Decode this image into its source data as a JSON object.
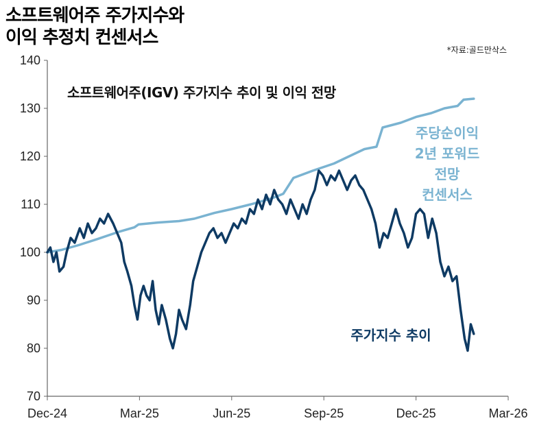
{
  "header": {
    "line1": "소프트웨어주 주가지수와",
    "line2": "이익 추정치 컨센서스",
    "source": "*자료:골드만삭스"
  },
  "colors": {
    "price": "#0e3a63",
    "eps": "#7ab3d1",
    "axis": "#666666"
  },
  "chart_data": {
    "type": "line",
    "title": "소프트웨어주(IGV) 주가지수 추이 및 이익 전망",
    "x_ticks": [
      "Dec-24",
      "Mar-25",
      "Jun-25",
      "Sep-25",
      "Dec-25",
      "Mar-26"
    ],
    "ylim": [
      70,
      140
    ],
    "y_ticks": [
      70,
      80,
      90,
      100,
      110,
      120,
      130,
      140
    ],
    "grid": false,
    "series": [
      {
        "name": "주가지수 추이",
        "labels": [
          "주가지수 추이"
        ],
        "color": "#0e3a63",
        "points": [
          [
            "2024-12-01",
            100
          ],
          [
            "2024-12-04",
            101
          ],
          [
            "2024-12-07",
            98
          ],
          [
            "2024-12-10",
            100
          ],
          [
            "2024-12-13",
            96
          ],
          [
            "2024-12-17",
            97
          ],
          [
            "2024-12-20",
            100
          ],
          [
            "2024-12-24",
            103
          ],
          [
            "2024-12-28",
            102
          ],
          [
            "2025-01-02",
            105
          ],
          [
            "2025-01-06",
            103
          ],
          [
            "2025-01-10",
            106
          ],
          [
            "2025-01-14",
            104
          ],
          [
            "2025-01-18",
            105
          ],
          [
            "2025-01-22",
            107
          ],
          [
            "2025-01-26",
            106
          ],
          [
            "2025-01-30",
            108
          ],
          [
            "2025-02-04",
            106
          ],
          [
            "2025-02-08",
            104
          ],
          [
            "2025-02-12",
            102
          ],
          [
            "2025-02-15",
            98
          ],
          [
            "2025-02-18",
            96
          ],
          [
            "2025-02-22",
            93
          ],
          [
            "2025-02-25",
            89
          ],
          [
            "2025-02-28",
            86
          ],
          [
            "2025-03-03",
            91
          ],
          [
            "2025-03-06",
            93
          ],
          [
            "2025-03-09",
            91
          ],
          [
            "2025-03-12",
            90
          ],
          [
            "2025-03-15",
            94
          ],
          [
            "2025-03-18",
            88
          ],
          [
            "2025-03-21",
            85
          ],
          [
            "2025-03-24",
            89
          ],
          [
            "2025-03-28",
            86
          ],
          [
            "2025-04-01",
            82
          ],
          [
            "2025-04-04",
            80
          ],
          [
            "2025-04-07",
            83
          ],
          [
            "2025-04-10",
            88
          ],
          [
            "2025-04-13",
            86
          ],
          [
            "2025-04-17",
            84
          ],
          [
            "2025-04-21",
            89
          ],
          [
            "2025-04-24",
            94
          ],
          [
            "2025-04-28",
            97
          ],
          [
            "2025-05-02",
            100
          ],
          [
            "2025-05-06",
            102
          ],
          [
            "2025-05-10",
            104
          ],
          [
            "2025-05-14",
            105
          ],
          [
            "2025-05-18",
            103
          ],
          [
            "2025-05-22",
            104
          ],
          [
            "2025-05-26",
            102
          ],
          [
            "2025-05-30",
            104
          ],
          [
            "2025-06-03",
            106
          ],
          [
            "2025-06-07",
            105
          ],
          [
            "2025-06-11",
            107
          ],
          [
            "2025-06-15",
            106
          ],
          [
            "2025-06-19",
            109
          ],
          [
            "2025-06-23",
            108
          ],
          [
            "2025-06-27",
            111
          ],
          [
            "2025-07-01",
            109
          ],
          [
            "2025-07-05",
            112
          ],
          [
            "2025-07-09",
            110
          ],
          [
            "2025-07-13",
            113
          ],
          [
            "2025-07-17",
            111
          ],
          [
            "2025-07-21",
            110
          ],
          [
            "2025-07-25",
            108
          ],
          [
            "2025-07-29",
            111
          ],
          [
            "2025-08-02",
            109
          ],
          [
            "2025-08-06",
            107
          ],
          [
            "2025-08-10",
            110
          ],
          [
            "2025-08-14",
            108
          ],
          [
            "2025-08-18",
            111
          ],
          [
            "2025-08-22",
            113
          ],
          [
            "2025-08-26",
            117
          ],
          [
            "2025-08-30",
            116
          ],
          [
            "2025-09-03",
            114
          ],
          [
            "2025-09-07",
            116
          ],
          [
            "2025-09-11",
            115
          ],
          [
            "2025-09-15",
            117
          ],
          [
            "2025-09-19",
            115
          ],
          [
            "2025-09-23",
            113
          ],
          [
            "2025-09-27",
            115
          ],
          [
            "2025-10-01",
            116
          ],
          [
            "2025-10-05",
            114
          ],
          [
            "2025-10-09",
            113
          ],
          [
            "2025-10-13",
            111
          ],
          [
            "2025-10-17",
            109
          ],
          [
            "2025-10-21",
            106
          ],
          [
            "2025-10-25",
            101
          ],
          [
            "2025-10-29",
            104
          ],
          [
            "2025-11-02",
            103
          ],
          [
            "2025-11-06",
            106
          ],
          [
            "2025-11-10",
            109
          ],
          [
            "2025-11-14",
            106
          ],
          [
            "2025-11-18",
            104
          ],
          [
            "2025-11-22",
            101
          ],
          [
            "2025-11-26",
            103
          ],
          [
            "2025-11-30",
            108
          ],
          [
            "2025-12-04",
            109
          ],
          [
            "2025-12-08",
            108
          ],
          [
            "2025-12-12",
            103
          ],
          [
            "2025-12-16",
            107
          ],
          [
            "2025-12-20",
            104
          ],
          [
            "2025-12-24",
            98
          ],
          [
            "2025-12-28",
            95
          ],
          [
            "2026-01-01",
            97
          ],
          [
            "2026-01-05",
            94
          ],
          [
            "2026-01-09",
            95
          ],
          [
            "2026-01-13",
            88
          ],
          [
            "2026-01-17",
            82
          ],
          [
            "2026-01-20",
            79.5
          ],
          [
            "2026-01-23",
            85
          ],
          [
            "2026-01-26",
            83
          ]
        ]
      },
      {
        "name": "주당순이익 2년 포워드 전망 컨센서스",
        "labels": [
          "주당순이익",
          "2년 포워드",
          "전망",
          "컨센서스"
        ],
        "color": "#7ab3d1",
        "points": [
          [
            "2024-12-01",
            100
          ],
          [
            "2024-12-15",
            100.5
          ],
          [
            "2025-01-01",
            101.5
          ],
          [
            "2025-01-20",
            102.8
          ],
          [
            "2025-02-10",
            104.3
          ],
          [
            "2025-02-25",
            105.2
          ],
          [
            "2025-03-01",
            105.8
          ],
          [
            "2025-03-20",
            106.2
          ],
          [
            "2025-04-10",
            106.5
          ],
          [
            "2025-04-25",
            107
          ],
          [
            "2025-05-15",
            108.2
          ],
          [
            "2025-06-01",
            109
          ],
          [
            "2025-06-20",
            110
          ],
          [
            "2025-07-10",
            111.2
          ],
          [
            "2025-07-22",
            112.2
          ],
          [
            "2025-08-01",
            115.5
          ],
          [
            "2025-08-20",
            117
          ],
          [
            "2025-09-10",
            118.5
          ],
          [
            "2025-09-25",
            120
          ],
          [
            "2025-10-10",
            121.5
          ],
          [
            "2025-10-22",
            122
          ],
          [
            "2025-10-28",
            126
          ],
          [
            "2025-11-15",
            127
          ],
          [
            "2025-11-30",
            128.2
          ],
          [
            "2025-12-15",
            129
          ],
          [
            "2025-12-28",
            130
          ],
          [
            "2026-01-10",
            130.5
          ],
          [
            "2026-01-16",
            131.8
          ],
          [
            "2026-01-26",
            132
          ]
        ]
      }
    ]
  }
}
